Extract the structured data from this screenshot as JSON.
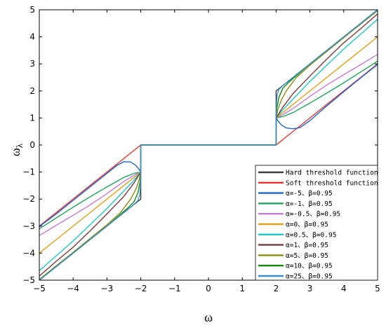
{
  "chart_data": {
    "type": "line",
    "title": "",
    "xlabel": "ω",
    "ylabel": "ω",
    "ylabel_subscript": "λ",
    "xlim": [
      -5,
      5
    ],
    "ylim": [
      -5,
      5
    ],
    "x_ticks": [
      -5,
      -4,
      -3,
      -2,
      -1,
      0,
      1,
      2,
      3,
      4,
      5
    ],
    "y_ticks": [
      -5,
      -4,
      -3,
      -2,
      -1,
      0,
      1,
      2,
      3,
      4,
      5
    ],
    "x_tick_labels": [
      "−5",
      "−4",
      "−3",
      "−2",
      "−1",
      "0",
      "1",
      "2",
      "3",
      "4",
      "5"
    ],
    "y_tick_labels": [
      "−5",
      "−4",
      "−3",
      "−2",
      "−1",
      "0",
      "1",
      "2",
      "3",
      "4",
      "5"
    ],
    "grid": false,
    "legend_position": "bottom-right",
    "threshold": 2,
    "series": [
      {
        "name": "Hard threshold function",
        "color": "#3d3d3d",
        "kind": "hard",
        "points": [
          [
            -5,
            -5
          ],
          [
            -2,
            -2
          ],
          [
            -2,
            0
          ],
          [
            2,
            0
          ],
          [
            2,
            2
          ],
          [
            5,
            5
          ]
        ]
      },
      {
        "name": "Soft threshold function",
        "color": "#e8322f",
        "kind": "soft",
        "points": [
          [
            -5,
            -3
          ],
          [
            -2,
            0
          ],
          [
            2,
            0
          ],
          [
            5,
            3
          ]
        ]
      },
      {
        "name": "α=-5、β=0.95",
        "color": "#1f66cf",
        "kind": "curve",
        "points": [
          [
            -5,
            -3.02
          ],
          [
            -4.5,
            -2.55
          ],
          [
            -4,
            -2.05
          ],
          [
            -3.5,
            -1.55
          ],
          [
            -3,
            -1.05
          ],
          [
            -2.7,
            -0.75
          ],
          [
            -2.5,
            -0.62
          ],
          [
            -2.3,
            -0.63
          ],
          [
            -2.15,
            -0.75
          ],
          [
            -2.05,
            -0.9
          ],
          [
            -2,
            -1
          ],
          [
            -2,
            0
          ],
          [
            2,
            0
          ],
          [
            2,
            1
          ],
          [
            2.05,
            0.9
          ],
          [
            2.15,
            0.75
          ],
          [
            2.3,
            0.63
          ],
          [
            2.5,
            0.6
          ],
          [
            2.7,
            0.64
          ],
          [
            3,
            0.9
          ],
          [
            3.5,
            1.45
          ],
          [
            4,
            1.97
          ],
          [
            4.5,
            2.48
          ],
          [
            5,
            2.98
          ]
        ]
      },
      {
        "name": "α=-1、β=0.95",
        "color": "#1ea35a",
        "kind": "curve",
        "points": [
          [
            -5,
            -3.1
          ],
          [
            -4.5,
            -2.7
          ],
          [
            -4,
            -2.3
          ],
          [
            -3.5,
            -1.92
          ],
          [
            -3,
            -1.55
          ],
          [
            -2.5,
            -1.2
          ],
          [
            -2.2,
            -1.05
          ],
          [
            -2,
            -1
          ],
          [
            -2,
            0
          ],
          [
            2,
            0
          ],
          [
            2,
            1
          ],
          [
            2.2,
            1.05
          ],
          [
            2.5,
            1.2
          ],
          [
            3,
            1.55
          ],
          [
            3.5,
            1.92
          ],
          [
            4,
            2.3
          ],
          [
            4.5,
            2.7
          ],
          [
            5,
            3.1
          ]
        ]
      },
      {
        "name": "α=-0.5、β=0.95",
        "color": "#c87ad8",
        "kind": "curve",
        "points": [
          [
            -5,
            -3.35
          ],
          [
            -4.5,
            -2.97
          ],
          [
            -4,
            -2.6
          ],
          [
            -3.5,
            -2.22
          ],
          [
            -3,
            -1.8
          ],
          [
            -2.5,
            -1.35
          ],
          [
            -2.2,
            -1.12
          ],
          [
            -2,
            -1
          ],
          [
            -2,
            0
          ],
          [
            2,
            0
          ],
          [
            2,
            1
          ],
          [
            2.2,
            1.12
          ],
          [
            2.5,
            1.35
          ],
          [
            3,
            1.8
          ],
          [
            3.5,
            2.22
          ],
          [
            4,
            2.6
          ],
          [
            4.5,
            2.97
          ],
          [
            5,
            3.35
          ]
        ]
      },
      {
        "name": "α=0、β=0.95",
        "color": "#e0a21a",
        "kind": "curve",
        "points": [
          [
            -5,
            -4
          ],
          [
            -2,
            -1
          ],
          [
            -2,
            0
          ],
          [
            2,
            0
          ],
          [
            2,
            1
          ],
          [
            5,
            4
          ]
        ]
      },
      {
        "name": "α=0.5、β=0.95",
        "color": "#1ec7c7",
        "kind": "curve",
        "points": [
          [
            -5,
            -4.65
          ],
          [
            -4.5,
            -4.1
          ],
          [
            -4,
            -3.55
          ],
          [
            -3.5,
            -2.95
          ],
          [
            -3,
            -2.35
          ],
          [
            -2.5,
            -1.7
          ],
          [
            -2.2,
            -1.3
          ],
          [
            -2,
            -1
          ],
          [
            -2,
            0
          ],
          [
            2,
            0
          ],
          [
            2,
            1
          ],
          [
            2.2,
            1.3
          ],
          [
            2.5,
            1.7
          ],
          [
            3,
            2.35
          ],
          [
            3.5,
            2.95
          ],
          [
            4,
            3.55
          ],
          [
            4.5,
            4.1
          ],
          [
            5,
            4.65
          ]
        ]
      },
      {
        "name": "α=1、β=0.95",
        "color": "#7a3b3b",
        "kind": "curve",
        "points": [
          [
            -5,
            -4.85
          ],
          [
            -4.5,
            -4.3
          ],
          [
            -4,
            -3.78
          ],
          [
            -3.5,
            -3.18
          ],
          [
            -3,
            -2.55
          ],
          [
            -2.5,
            -1.9
          ],
          [
            -2.2,
            -1.4
          ],
          [
            -2,
            -1
          ],
          [
            -2,
            0
          ],
          [
            2,
            0
          ],
          [
            2,
            1
          ],
          [
            2.2,
            1.4
          ],
          [
            2.5,
            1.9
          ],
          [
            3,
            2.55
          ],
          [
            3.5,
            3.18
          ],
          [
            4,
            3.78
          ],
          [
            4.5,
            4.3
          ],
          [
            5,
            4.85
          ]
        ]
      },
      {
        "name": "α=5、β=0.95",
        "color": "#8a8a12",
        "kind": "curve",
        "points": [
          [
            -5,
            -4.97
          ],
          [
            -4,
            -3.97
          ],
          [
            -3,
            -2.95
          ],
          [
            -2.6,
            -2.5
          ],
          [
            -2.3,
            -2.0
          ],
          [
            -2.15,
            -1.65
          ],
          [
            -2.05,
            -1.3
          ],
          [
            -2,
            -1
          ],
          [
            -2,
            0
          ],
          [
            2,
            0
          ],
          [
            2,
            1
          ],
          [
            2.05,
            1.3
          ],
          [
            2.15,
            1.65
          ],
          [
            2.3,
            2.0
          ],
          [
            2.6,
            2.5
          ],
          [
            3,
            2.95
          ],
          [
            4,
            3.97
          ],
          [
            5,
            4.97
          ]
        ]
      },
      {
        "name": "α=10、β=0.95",
        "color": "#108c10",
        "kind": "curve",
        "points": [
          [
            -5,
            -5
          ],
          [
            -3,
            -3
          ],
          [
            -2.4,
            -2.35
          ],
          [
            -2.2,
            -2.1
          ],
          [
            -2.08,
            -1.75
          ],
          [
            -2.02,
            -1.35
          ],
          [
            -2,
            -1
          ],
          [
            -2,
            0
          ],
          [
            2,
            0
          ],
          [
            2,
            1
          ],
          [
            2.02,
            1.35
          ],
          [
            2.08,
            1.75
          ],
          [
            2.2,
            2.1
          ],
          [
            2.4,
            2.35
          ],
          [
            3,
            3
          ],
          [
            5,
            5
          ]
        ]
      },
      {
        "name": "α=25、β=0.95",
        "color": "#3e8fd0",
        "kind": "curve",
        "points": [
          [
            -5,
            -5
          ],
          [
            -2.2,
            -2.2
          ],
          [
            -2.08,
            -2.05
          ],
          [
            -2.03,
            -1.85
          ],
          [
            -2.01,
            -1.5
          ],
          [
            -2,
            -1
          ],
          [
            -2,
            0
          ],
          [
            2,
            0
          ],
          [
            2,
            1
          ],
          [
            2.01,
            1.5
          ],
          [
            2.03,
            1.85
          ],
          [
            2.08,
            2.05
          ],
          [
            2.2,
            2.2
          ],
          [
            5,
            5
          ]
        ]
      }
    ]
  }
}
